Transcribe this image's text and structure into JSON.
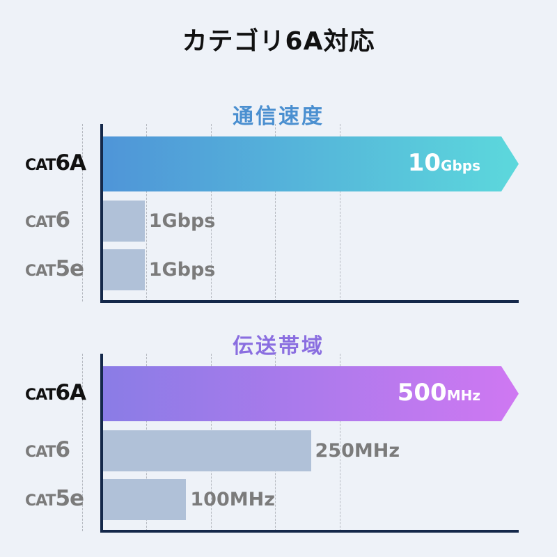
{
  "title": "カテゴリ6A対応",
  "chart_data": [
    {
      "type": "bar",
      "orientation": "horizontal",
      "title": "通信速度",
      "title_color": "#4a8fd0",
      "categories": [
        {
          "prefix": "CAT",
          "suffix": "6A"
        },
        {
          "prefix": "CAT",
          "suffix": "6"
        },
        {
          "prefix": "CAT",
          "suffix": "5e"
        }
      ],
      "values": [
        10,
        1,
        1
      ],
      "unit": "Gbps",
      "labels": [
        {
          "value": "10",
          "unit": "Gbps"
        },
        {
          "value": "1",
          "unit": "Gbps"
        },
        {
          "value": "1",
          "unit": "Gbps"
        }
      ],
      "highlight_gradient": [
        "#4f95d8",
        "#5cd8dc"
      ],
      "bar_color": "#b0c1d8",
      "grid": true
    },
    {
      "type": "bar",
      "orientation": "horizontal",
      "title": "伝送帯域",
      "title_color": "#8a6ee0",
      "categories": [
        {
          "prefix": "CAT",
          "suffix": "6A"
        },
        {
          "prefix": "CAT",
          "suffix": "6"
        },
        {
          "prefix": "CAT",
          "suffix": "5e"
        }
      ],
      "values": [
        500,
        250,
        100
      ],
      "unit": "MHz",
      "labels": [
        {
          "value": "500",
          "unit": "MHz"
        },
        {
          "value": "250",
          "unit": "MHz"
        },
        {
          "value": "100",
          "unit": "MHz"
        }
      ],
      "highlight_gradient": [
        "#8a7ce6",
        "#cf78f2"
      ],
      "bar_color": "#b0c1d8",
      "grid": true
    }
  ]
}
